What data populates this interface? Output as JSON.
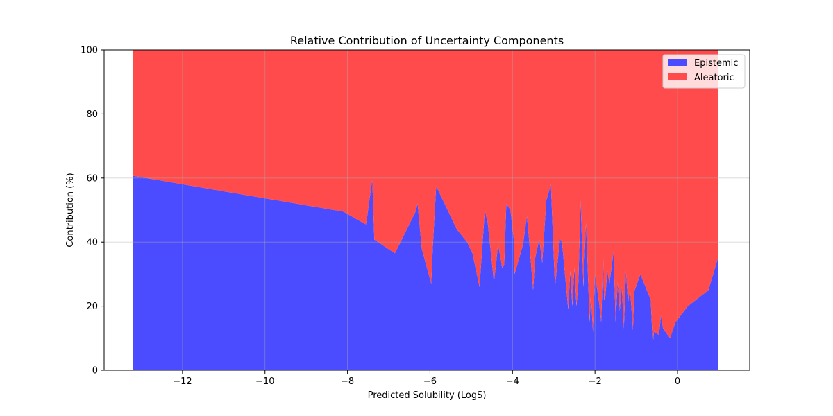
{
  "chart_data": {
    "type": "area",
    "stacked": true,
    "normalized_percent": true,
    "title": "Relative Contribution of Uncertainty Components",
    "xlabel": "Predicted Solubility (LogS)",
    "ylabel": "Contribution (%)",
    "xlim": [
      -13.9,
      1.75
    ],
    "ylim": [
      0,
      100
    ],
    "xticks": [
      -12,
      -10,
      -8,
      -6,
      -4,
      -2,
      0
    ],
    "xtick_labels": [
      "−12",
      "−10",
      "−8",
      "−6",
      "−4",
      "−2",
      "0"
    ],
    "yticks": [
      0,
      20,
      40,
      60,
      80,
      100
    ],
    "ytick_labels": [
      "0",
      "20",
      "40",
      "60",
      "80",
      "100"
    ],
    "grid": true,
    "legend_position": "top-right",
    "x": [
      -13.2,
      -8.1,
      -7.55,
      -7.4,
      -7.35,
      -6.85,
      -6.35,
      -6.3,
      -6.2,
      -5.97,
      -5.93,
      -5.85,
      -5.35,
      -5.1,
      -4.97,
      -4.8,
      -4.67,
      -4.6,
      -4.45,
      -4.4,
      -4.35,
      -4.25,
      -4.2,
      -4.15,
      -4.05,
      -3.97,
      -3.95,
      -3.75,
      -3.65,
      -3.6,
      -3.5,
      -3.45,
      -3.35,
      -3.28,
      -3.18,
      -3.07,
      -2.97,
      -2.85,
      -2.8,
      -2.65,
      -2.6,
      -2.55,
      -2.5,
      -2.45,
      -2.4,
      -2.35,
      -2.28,
      -2.22,
      -2.2,
      -2.13,
      -2.1,
      -2.05,
      -2.0,
      -1.9,
      -1.85,
      -1.8,
      -1.78,
      -1.75,
      -1.7,
      -1.65,
      -1.55,
      -1.5,
      -1.45,
      -1.4,
      -1.35,
      -1.3,
      -1.25,
      -1.2,
      -1.15,
      -1.08,
      -1.05,
      -0.9,
      -0.65,
      -0.6,
      -0.57,
      -0.45,
      -0.4,
      -0.35,
      -0.18,
      -0.05,
      0.25,
      0.75,
      0.98
    ],
    "series": [
      {
        "name": "Epistemic",
        "color": "#4b4bff",
        "values": [
          60.7,
          49.5,
          45.5,
          59.5,
          40.8,
          36.5,
          49.5,
          52.0,
          38.0,
          27.0,
          39.0,
          57.5,
          44.0,
          40.0,
          36.5,
          26.0,
          50.0,
          46.0,
          27.5,
          33.0,
          39.5,
          32.0,
          33.0,
          52.0,
          50.0,
          41.0,
          30.0,
          39.0,
          48.0,
          41.0,
          25.0,
          35.0,
          41.0,
          33.5,
          53.0,
          58.0,
          26.0,
          41.0,
          40.0,
          19.0,
          31.0,
          20.0,
          32.0,
          20.0,
          28.0,
          53.0,
          26.0,
          46.0,
          40.0,
          15.0,
          24.0,
          12.0,
          30.0,
          21.0,
          15.0,
          35.0,
          22.0,
          23.0,
          31.0,
          27.0,
          37.0,
          15.0,
          27.5,
          18.5,
          26.0,
          13.0,
          31.0,
          21.0,
          25.5,
          12.5,
          24.5,
          30.0,
          22.0,
          8.0,
          12.0,
          11.0,
          17.0,
          13.0,
          10.0,
          15.0,
          20.0,
          25.0,
          35.0
        ]
      },
      {
        "name": "Aleatoric",
        "color": "#ff4b4b",
        "values": [
          39.3,
          50.5,
          54.5,
          40.5,
          59.2,
          63.5,
          50.5,
          48.0,
          62.0,
          73.0,
          61.0,
          42.5,
          56.0,
          60.0,
          63.5,
          74.0,
          50.0,
          54.0,
          72.5,
          67.0,
          60.5,
          68.0,
          67.0,
          48.0,
          50.0,
          59.0,
          70.0,
          61.0,
          52.0,
          59.0,
          75.0,
          65.0,
          59.0,
          66.5,
          47.0,
          42.0,
          74.0,
          59.0,
          60.0,
          81.0,
          69.0,
          80.0,
          68.0,
          80.0,
          72.0,
          47.0,
          74.0,
          54.0,
          60.0,
          85.0,
          76.0,
          88.0,
          70.0,
          79.0,
          85.0,
          65.0,
          78.0,
          77.0,
          69.0,
          73.0,
          63.0,
          85.0,
          72.5,
          81.5,
          74.0,
          87.0,
          69.0,
          79.0,
          74.5,
          87.5,
          75.5,
          70.0,
          78.0,
          92.0,
          88.0,
          89.0,
          83.0,
          87.0,
          90.0,
          85.0,
          80.0,
          75.0,
          65.0
        ]
      }
    ]
  }
}
